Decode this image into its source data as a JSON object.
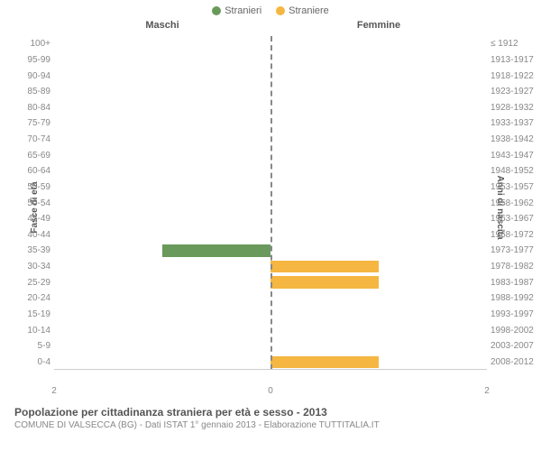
{
  "legend": {
    "male": {
      "label": "Stranieri",
      "color": "#6a9a5b"
    },
    "female": {
      "label": "Straniere",
      "color": "#f5b642"
    }
  },
  "columns": {
    "left": "Maschi",
    "right": "Femmine"
  },
  "y_left_label": "Fasce di età",
  "y_right_label": "Anni di nascita",
  "x_max": 2,
  "x_ticks": [
    "2",
    "0",
    "2"
  ],
  "bar_colors": {
    "male": "#6a9a5b",
    "female": "#f5b642"
  },
  "grid_color": "#cccccc",
  "center_line_color": "#888888",
  "rows": [
    {
      "age": "100+",
      "years": "≤ 1912",
      "m": 0,
      "f": 0
    },
    {
      "age": "95-99",
      "years": "1913-1917",
      "m": 0,
      "f": 0
    },
    {
      "age": "90-94",
      "years": "1918-1922",
      "m": 0,
      "f": 0
    },
    {
      "age": "85-89",
      "years": "1923-1927",
      "m": 0,
      "f": 0
    },
    {
      "age": "80-84",
      "years": "1928-1932",
      "m": 0,
      "f": 0
    },
    {
      "age": "75-79",
      "years": "1933-1937",
      "m": 0,
      "f": 0
    },
    {
      "age": "70-74",
      "years": "1938-1942",
      "m": 0,
      "f": 0
    },
    {
      "age": "65-69",
      "years": "1943-1947",
      "m": 0,
      "f": 0
    },
    {
      "age": "60-64",
      "years": "1948-1952",
      "m": 0,
      "f": 0
    },
    {
      "age": "55-59",
      "years": "1953-1957",
      "m": 0,
      "f": 0
    },
    {
      "age": "50-54",
      "years": "1958-1962",
      "m": 0,
      "f": 0
    },
    {
      "age": "45-49",
      "years": "1963-1967",
      "m": 0,
      "f": 0
    },
    {
      "age": "40-44",
      "years": "1968-1972",
      "m": 0,
      "f": 0
    },
    {
      "age": "35-39",
      "years": "1973-1977",
      "m": 1,
      "f": 0
    },
    {
      "age": "30-34",
      "years": "1978-1982",
      "m": 0,
      "f": 1
    },
    {
      "age": "25-29",
      "years": "1983-1987",
      "m": 0,
      "f": 1
    },
    {
      "age": "20-24",
      "years": "1988-1992",
      "m": 0,
      "f": 0
    },
    {
      "age": "15-19",
      "years": "1993-1997",
      "m": 0,
      "f": 0
    },
    {
      "age": "10-14",
      "years": "1998-2002",
      "m": 0,
      "f": 0
    },
    {
      "age": "5-9",
      "years": "2003-2007",
      "m": 0,
      "f": 0
    },
    {
      "age": "0-4",
      "years": "2008-2012",
      "m": 0,
      "f": 1
    }
  ],
  "footer": {
    "title": "Popolazione per cittadinanza straniera per età e sesso - 2013",
    "subtitle": "COMUNE DI VALSECCA (BG) - Dati ISTAT 1° gennaio 2013 - Elaborazione TUTTITALIA.IT"
  }
}
